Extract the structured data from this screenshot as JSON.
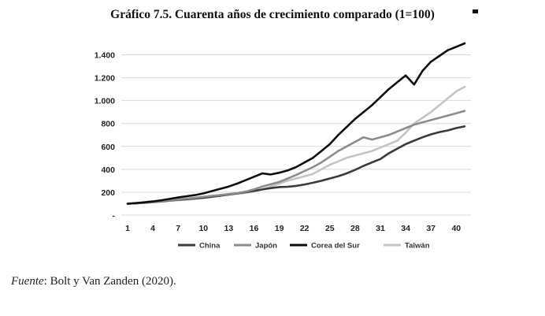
{
  "page": {
    "title": "Gráfico 7.5. Cuarenta años de crecimiento comparado (1=100)",
    "source_label": "Fuente",
    "source_text": ": Bolt y Van Zanden (2020)."
  },
  "chart_data": {
    "type": "line",
    "title": "Gráfico 7.5. Cuarenta años de crecimiento comparado (1=100)",
    "xlabel": "",
    "ylabel": "",
    "x": [
      1,
      2,
      3,
      4,
      5,
      6,
      7,
      8,
      9,
      10,
      11,
      12,
      13,
      14,
      15,
      16,
      17,
      18,
      19,
      20,
      21,
      22,
      23,
      24,
      25,
      26,
      27,
      28,
      29,
      30,
      31,
      32,
      33,
      34,
      35,
      36,
      37,
      38,
      39,
      40,
      41
    ],
    "x_ticks": [
      1,
      4,
      7,
      10,
      13,
      16,
      19,
      22,
      25,
      28,
      31,
      34,
      37,
      40
    ],
    "y_ticks": [
      0,
      200,
      400,
      600,
      800,
      1000,
      1200,
      1400
    ],
    "y_tick_labels": [
      "-",
      "200",
      "400",
      "600",
      "800",
      "1.000",
      "1.200",
      "1.400"
    ],
    "xlim": [
      1,
      41
    ],
    "ylim": [
      0,
      1400
    ],
    "grid": "horizontal",
    "legend_position": "bottom",
    "series": [
      {
        "name": "China",
        "color": "#3a3a3a",
        "width": 2.6,
        "values": [
          100,
          103,
          108,
          114,
          120,
          127,
          134,
          140,
          146,
          152,
          160,
          170,
          180,
          190,
          200,
          212,
          224,
          236,
          245,
          248,
          255,
          268,
          283,
          300,
          320,
          340,
          365,
          395,
          430,
          460,
          490,
          540,
          580,
          620,
          650,
          680,
          705,
          725,
          740,
          760,
          775
        ]
      },
      {
        "name": "Japón",
        "color": "#8c8c8c",
        "width": 2.6,
        "values": [
          100,
          104,
          108,
          115,
          122,
          130,
          138,
          145,
          152,
          160,
          168,
          176,
          184,
          192,
          205,
          225,
          250,
          270,
          290,
          320,
          350,
          385,
          420,
          460,
          510,
          560,
          600,
          640,
          680,
          660,
          680,
          700,
          730,
          760,
          790,
          810,
          830,
          850,
          870,
          890,
          910
        ]
      },
      {
        "name": "Corea del Sur",
        "color": "#0d0d0d",
        "width": 2.6,
        "values": [
          100,
          105,
          112,
          120,
          130,
          142,
          155,
          165,
          175,
          190,
          210,
          230,
          250,
          275,
          305,
          335,
          365,
          355,
          370,
          390,
          420,
          460,
          500,
          560,
          620,
          700,
          770,
          840,
          900,
          960,
          1030,
          1100,
          1160,
          1220,
          1140,
          1260,
          1340,
          1390,
          1440,
          1470,
          1500
        ]
      },
      {
        "name": "Taiwán",
        "color": "#c4c4c4",
        "width": 2.6,
        "values": [
          100,
          102,
          106,
          112,
          118,
          124,
          130,
          135,
          142,
          150,
          160,
          170,
          178,
          186,
          195,
          205,
          225,
          250,
          275,
          300,
          320,
          340,
          360,
          400,
          440,
          470,
          500,
          520,
          540,
          560,
          590,
          620,
          650,
          720,
          800,
          850,
          900,
          960,
          1020,
          1080,
          1120
        ]
      }
    ]
  }
}
